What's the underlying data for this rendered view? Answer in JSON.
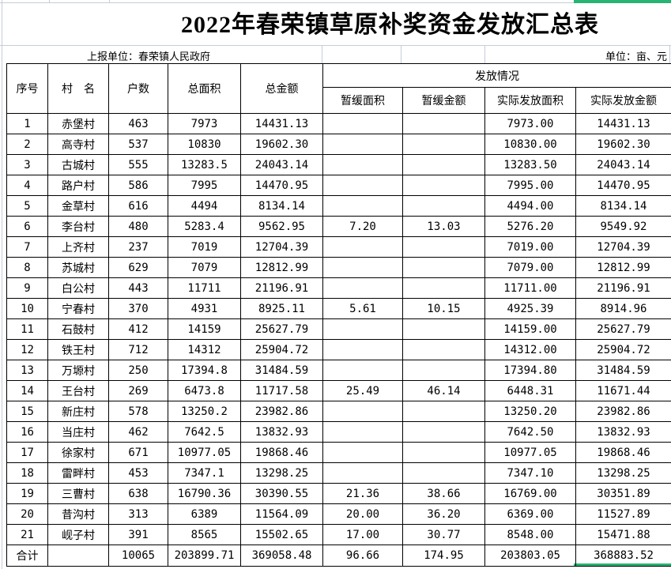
{
  "title": "2022年春荣镇草原补奖资金发放汇总表",
  "meta": {
    "reporting_unit": "上报单位：春荣镇人民政府",
    "unit_label": "单位：亩、元"
  },
  "colors": {
    "selection_green": "#28b473",
    "gridline": "#c6ccd8",
    "table_border": "#000000"
  },
  "table": {
    "headers": {
      "col_serial": "序号",
      "col_village": "村　名",
      "col_households": "户数",
      "col_total_area": "总面积",
      "col_total_amount": "总金额",
      "group_distribution": "发放情况",
      "col_deferred_area": "暂缓面积",
      "col_deferred_amount": "暂缓金额",
      "col_actual_area": "实际发放面积",
      "col_actual_amount": "实际发放金额"
    },
    "rows": [
      [
        "1",
        "赤堡村",
        "463",
        "7973",
        "14431.13",
        "",
        "",
        "7973.00",
        "14431.13"
      ],
      [
        "2",
        "高寺村",
        "537",
        "10830",
        "19602.30",
        "",
        "",
        "10830.00",
        "19602.30"
      ],
      [
        "3",
        "古城村",
        "555",
        "13283.5",
        "24043.14",
        "",
        "",
        "13283.50",
        "24043.14"
      ],
      [
        "4",
        "路户村",
        "586",
        "7995",
        "14470.95",
        "",
        "",
        "7995.00",
        "14470.95"
      ],
      [
        "5",
        "金草村",
        "616",
        "4494",
        "8134.14",
        "",
        "",
        "4494.00",
        "8134.14"
      ],
      [
        "6",
        "李台村",
        "480",
        "5283.4",
        "9562.95",
        "7.20",
        "13.03",
        "5276.20",
        "9549.92"
      ],
      [
        "7",
        "上齐村",
        "237",
        "7019",
        "12704.39",
        "",
        "",
        "7019.00",
        "12704.39"
      ],
      [
        "8",
        "苏城村",
        "629",
        "7079",
        "12812.99",
        "",
        "",
        "7079.00",
        "12812.99"
      ],
      [
        "9",
        "白公村",
        "443",
        "11711",
        "21196.91",
        "",
        "",
        "11711.00",
        "21196.91"
      ],
      [
        "10",
        "宁春村",
        "370",
        "4931",
        "8925.11",
        "5.61",
        "10.15",
        "4925.39",
        "8914.96"
      ],
      [
        "11",
        "石鼓村",
        "412",
        "14159",
        "25627.79",
        "",
        "",
        "14159.00",
        "25627.79"
      ],
      [
        "12",
        "铁王村",
        "712",
        "14312",
        "25904.72",
        "",
        "",
        "14312.00",
        "25904.72"
      ],
      [
        "13",
        "万塬村",
        "250",
        "17394.8",
        "31484.59",
        "",
        "",
        "17394.80",
        "31484.59"
      ],
      [
        "14",
        "王台村",
        "269",
        "6473.8",
        "11717.58",
        "25.49",
        "46.14",
        "6448.31",
        "11671.44"
      ],
      [
        "15",
        "新庄村",
        "578",
        "13250.2",
        "23982.86",
        "",
        "",
        "13250.20",
        "23982.86"
      ],
      [
        "16",
        "当庄村",
        "462",
        "7642.5",
        "13832.93",
        "",
        "",
        "7642.50",
        "13832.93"
      ],
      [
        "17",
        "徐家村",
        "671",
        "10977.05",
        "19868.46",
        "",
        "",
        "10977.05",
        "19868.46"
      ],
      [
        "18",
        "雷畔村",
        "453",
        "7347.1",
        "13298.25",
        "",
        "",
        "7347.10",
        "13298.25"
      ],
      [
        "19",
        "三曹村",
        "638",
        "16790.36",
        "30390.55",
        "21.36",
        "38.66",
        "16769.00",
        "30351.89"
      ],
      [
        "20",
        "昔沟村",
        "313",
        "6389",
        "11564.09",
        "20.00",
        "36.20",
        "6369.00",
        "11527.89"
      ],
      [
        "21",
        "岘子村",
        "391",
        "8565",
        "15502.65",
        "17.00",
        "30.77",
        "8548.00",
        "15471.88"
      ],
      [
        "合计",
        "",
        "10065",
        "203899.71",
        "369058.48",
        "96.66",
        "174.95",
        "203803.05",
        "368883.52"
      ]
    ]
  }
}
